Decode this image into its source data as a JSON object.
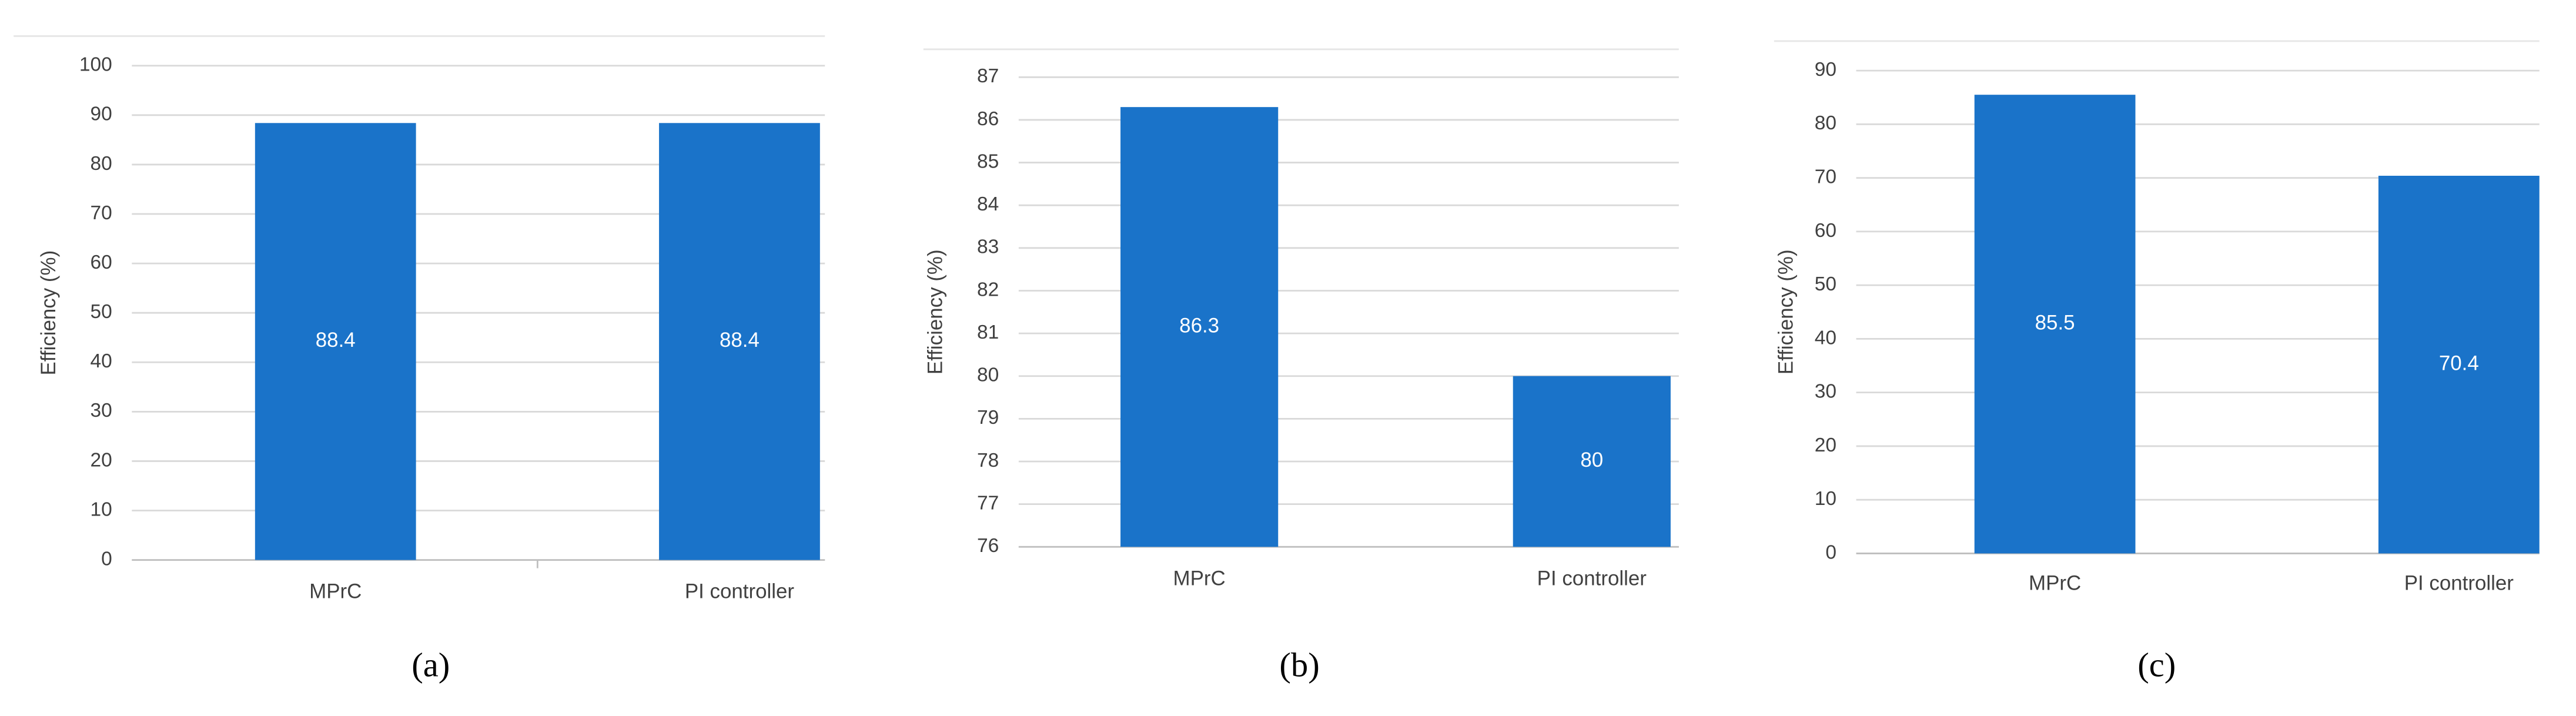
{
  "chart_data": [
    {
      "type": "bar",
      "caption": "(a)",
      "y_label": "Efficiency (%)",
      "categories": [
        "MPrC",
        "PI controller"
      ],
      "values": [
        88.4,
        88.4
      ],
      "color": "#1a73c9",
      "ylim": [
        0,
        100
      ],
      "yticks": [
        0,
        10,
        20,
        30,
        40,
        50,
        60,
        70,
        80,
        90,
        100
      ],
      "grid": true
    },
    {
      "type": "bar",
      "caption": "(b)",
      "y_label": "Efficiency (%)",
      "categories": [
        "MPrC",
        "PI controller"
      ],
      "values": [
        86.3,
        80
      ],
      "color": "#1a73c9",
      "ylim": [
        76,
        87
      ],
      "yticks": [
        76,
        77,
        78,
        79,
        80,
        81,
        82,
        83,
        84,
        85,
        86,
        87
      ],
      "grid": true
    },
    {
      "type": "bar",
      "caption": "(c)",
      "y_label": "Efficiency (%)",
      "categories": [
        "MPrC",
        "PI controller"
      ],
      "values": [
        85.5,
        70.4
      ],
      "color": "#1a73c9",
      "ylim": [
        0,
        90
      ],
      "yticks": [
        0,
        10,
        20,
        30,
        40,
        50,
        60,
        70,
        80,
        90
      ],
      "grid": true
    }
  ]
}
